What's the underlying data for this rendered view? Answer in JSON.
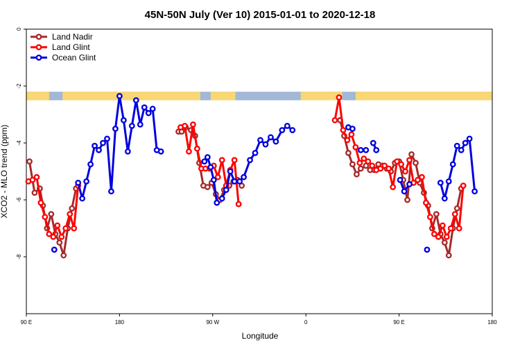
{
  "chart_data": {
    "type": "line",
    "title": "45N-50N July (Ver 10)   2015-01-01 to 2020-12-18",
    "xlabel": "Longitude",
    "ylabel": "XCO2 - MLO trend (ppm)",
    "x_tick_values": [
      90,
      180,
      270,
      360,
      450,
      540
    ],
    "x_tick_labels": [
      "90 E",
      "180",
      "90 W",
      "0",
      "90 E",
      "180"
    ],
    "xlim": [
      90,
      540
    ],
    "ylim": [
      -10,
      0
    ],
    "y_tick_values": [
      0,
      -2,
      -4,
      -6,
      -8
    ],
    "y_tick_labels": [
      "0",
      "-2",
      "-4",
      "-6",
      "-8"
    ],
    "y_reversed": true,
    "grid": false,
    "legend_position": "top-left",
    "land_ocean_strip": {
      "y_top": -2.2,
      "y_bottom": -2.5,
      "land_color": "#f8d774",
      "ocean_color": "#a2b8d6"
    },
    "series": [
      {
        "name": "Land Nadir",
        "color": "#a52a2a",
        "segments": [
          [
            [
              93,
              -4.65
            ],
            [
              98,
              -5.75
            ],
            [
              103,
              -5.6
            ],
            [
              106,
              -6.2
            ],
            [
              110,
              -7.0
            ],
            [
              114,
              -6.5
            ],
            [
              118,
              -7.2
            ],
            [
              122,
              -7.5
            ],
            [
              126,
              -7.95
            ],
            [
              130,
              -7.0
            ],
            [
              134,
              -6.3
            ],
            [
              138,
              -5.6
            ]
          ],
          [
            [
              237,
              -3.6
            ],
            [
              240,
              -3.6
            ],
            [
              244,
              -3.45
            ],
            [
              249,
              -3.55
            ],
            [
              253,
              -3.75
            ],
            [
              257,
              -4.7
            ],
            [
              261,
              -5.5
            ],
            [
              265,
              -5.55
            ],
            [
              269,
              -5.4
            ],
            [
              273,
              -5.8
            ],
            [
              277,
              -6.0
            ],
            [
              281,
              -5.65
            ],
            [
              286,
              -5.5
            ],
            [
              290,
              -5.35
            ],
            [
              294,
              -5.3
            ],
            [
              298,
              -5.5
            ]
          ],
          [
            [
              393,
              -3.2
            ],
            [
              397,
              -3.75
            ],
            [
              401,
              -4.35
            ],
            [
              405,
              -4.75
            ],
            [
              409,
              -5.1
            ],
            [
              413,
              -4.9
            ],
            [
              418,
              -4.8
            ],
            [
              422,
              -4.95
            ],
            [
              426,
              -4.95
            ],
            [
              430,
              -4.75
            ],
            [
              434,
              -4.8
            ],
            [
              438,
              -4.9
            ],
            [
              442,
              -5.0
            ],
            [
              446,
              -4.7
            ],
            [
              450,
              -4.65
            ],
            [
              454,
              -5.3
            ],
            [
              458,
              -6.0
            ],
            [
              462,
              -4.4
            ],
            [
              466,
              -4.7
            ],
            [
              470,
              -5.4
            ],
            [
              474,
              -5.75
            ],
            [
              478,
              -6.2
            ],
            [
              482,
              -7.0
            ],
            [
              486,
              -6.5
            ],
            [
              490,
              -7.2
            ],
            [
              494,
              -7.5
            ],
            [
              498,
              -7.95
            ],
            [
              502,
              -7.0
            ],
            [
              506,
              -6.3
            ],
            [
              510,
              -5.6
            ]
          ]
        ]
      },
      {
        "name": "Land Glint",
        "color": "#ff0000",
        "segments": [
          [
            [
              92,
              -5.35
            ],
            [
              96,
              -5.3
            ],
            [
              100,
              -5.2
            ],
            [
              104,
              -6.1
            ],
            [
              108,
              -6.6
            ],
            [
              112,
              -7.2
            ],
            [
              116,
              -7.3
            ],
            [
              120,
              -6.9
            ],
            [
              124,
              -7.3
            ],
            [
              128,
              -7.0
            ],
            [
              132,
              -6.5
            ],
            [
              136,
              -7.0
            ],
            [
              140,
              -5.5
            ]
          ],
          [
            [
              239,
              -3.45
            ],
            [
              243,
              -3.4
            ],
            [
              247,
              -4.3
            ],
            [
              251,
              -3.35
            ],
            [
              255,
              -4.2
            ],
            [
              259,
              -4.9
            ],
            [
              263,
              -4.9
            ],
            [
              267,
              -4.9
            ],
            [
              271,
              -4.8
            ],
            [
              275,
              -5.2
            ],
            [
              279,
              -4.6
            ],
            [
              283,
              -5.5
            ],
            [
              287,
              -4.95
            ],
            [
              291,
              -4.6
            ],
            [
              295,
              -6.15
            ]
          ],
          [
            [
              388,
              -3.2
            ],
            [
              392,
              -2.4
            ],
            [
              396,
              -3.55
            ],
            [
              400,
              -3.9
            ],
            [
              404,
              -3.7
            ],
            [
              408,
              -4.15
            ],
            [
              412,
              -4.7
            ],
            [
              416,
              -4.55
            ],
            [
              420,
              -4.65
            ],
            [
              424,
              -4.8
            ],
            [
              428,
              -4.95
            ],
            [
              432,
              -4.9
            ],
            [
              436,
              -4.8
            ],
            [
              440,
              -4.9
            ],
            [
              444,
              -5.55
            ],
            [
              448,
              -4.65
            ],
            [
              452,
              -4.75
            ],
            [
              456,
              -5.0
            ],
            [
              460,
              -4.6
            ],
            [
              464,
              -5.4
            ],
            [
              468,
              -5.3
            ],
            [
              472,
              -5.2
            ],
            [
              476,
              -6.1
            ],
            [
              480,
              -6.6
            ],
            [
              484,
              -7.2
            ],
            [
              488,
              -7.3
            ],
            [
              492,
              -6.9
            ],
            [
              496,
              -7.3
            ],
            [
              500,
              -7.0
            ],
            [
              504,
              -6.5
            ],
            [
              508,
              -7.0
            ],
            [
              512,
              -5.5
            ]
          ]
        ]
      },
      {
        "name": "Ocean Glint",
        "color": "#0000dd",
        "segments": [
          [
            [
              117,
              -7.75
            ]
          ],
          [
            [
              140,
              -5.4
            ],
            [
              144,
              -5.95
            ],
            [
              148,
              -5.35
            ],
            [
              152,
              -4.75
            ],
            [
              156,
              -4.1
            ],
            [
              160,
              -4.25
            ],
            [
              164,
              -4.0
            ],
            [
              168,
              -3.85
            ],
            [
              172,
              -5.7
            ],
            [
              176,
              -3.5
            ],
            [
              180,
              -2.35
            ],
            [
              184,
              -3.2
            ],
            [
              188,
              -4.3
            ],
            [
              192,
              -3.4
            ],
            [
              196,
              -2.5
            ],
            [
              200,
              -3.35
            ],
            [
              204,
              -2.75
            ],
            [
              208,
              -2.95
            ],
            [
              212,
              -2.8
            ],
            [
              216,
              -4.25
            ],
            [
              220,
              -4.3
            ]
          ],
          [
            [
              262,
              -4.65
            ],
            [
              265,
              -4.5
            ],
            [
              268,
              -4.85
            ],
            [
              271,
              -5.3
            ],
            [
              274,
              -6.1
            ]
          ],
          [
            [
              279,
              -5.95
            ],
            [
              283,
              -5.65
            ],
            [
              287,
              -5.0
            ],
            [
              291,
              -5.35
            ],
            [
              296,
              -5.35
            ],
            [
              300,
              -5.2
            ],
            [
              306,
              -4.6
            ],
            [
              311,
              -4.35
            ],
            [
              316,
              -3.9
            ],
            [
              321,
              -4.05
            ],
            [
              326,
              -3.8
            ],
            [
              331,
              -3.95
            ],
            [
              337,
              -3.55
            ],
            [
              342,
              -3.4
            ],
            [
              347,
              -3.55
            ]
          ],
          [
            [
              401,
              -3.45
            ],
            [
              405,
              -3.5
            ]
          ],
          [
            [
              413,
              -4.25
            ],
            [
              418,
              -4.25
            ]
          ],
          [
            [
              425,
              -4.0
            ],
            [
              428,
              -4.25
            ]
          ],
          [
            [
              451,
              -5.3
            ],
            [
              455,
              -5.7
            ],
            [
              460,
              -5.45
            ]
          ],
          [
            [
              477,
              -7.75
            ]
          ],
          [
            [
              490,
              -5.4
            ],
            [
              494,
              -5.95
            ],
            [
              498,
              -5.35
            ],
            [
              502,
              -4.75
            ],
            [
              506,
              -4.1
            ],
            [
              510,
              -4.25
            ],
            [
              514,
              -4.0
            ],
            [
              518,
              -3.85
            ],
            [
              523,
              -5.7
            ]
          ]
        ]
      }
    ]
  }
}
